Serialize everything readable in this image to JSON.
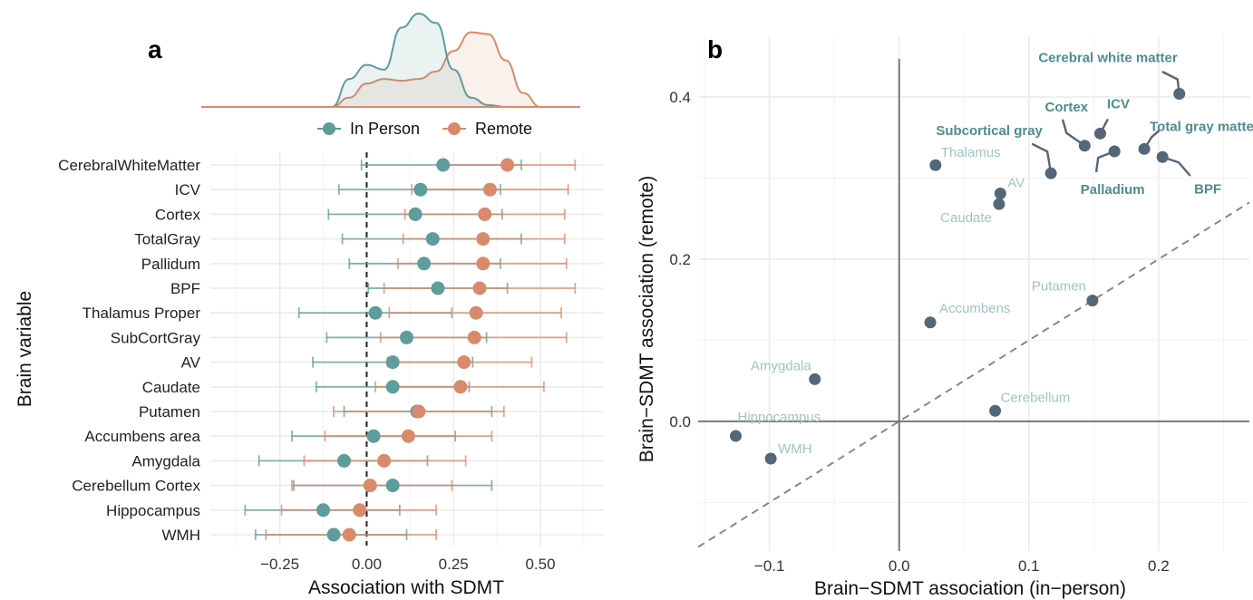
{
  "colors": {
    "in_person": "#5f9c9c",
    "remote": "#d88a6a",
    "point_b": "#556678",
    "label_light": "#9fc4c4",
    "label_dark": "#4f8c8c",
    "grid": "#ebebeb"
  },
  "chart_data": [
    {
      "panel": "a",
      "type": "dot-interval",
      "xlabel": "Association with SDMT",
      "ylabel": "Brain variable",
      "xlim": [
        -0.45,
        0.68
      ],
      "xticks": [
        -0.25,
        0,
        0.25,
        0.5
      ],
      "xtick_labels": [
        "−0.25",
        "0.00",
        "0.25",
        "0.50"
      ],
      "reference_line_x": 0,
      "legend": {
        "position": "top",
        "entries": [
          "In Person",
          "Remote"
        ]
      },
      "density": {
        "x": [
          -0.1,
          -0.05,
          0.0,
          0.05,
          0.1,
          0.15,
          0.2,
          0.25,
          0.3,
          0.35,
          0.4,
          0.45,
          0.5
        ],
        "in_person": [
          0.0,
          0.3,
          0.45,
          0.4,
          0.85,
          1.0,
          0.9,
          0.4,
          0.1,
          0.02,
          0.0,
          0.0,
          0.0
        ],
        "remote": [
          0.0,
          0.1,
          0.25,
          0.3,
          0.28,
          0.3,
          0.38,
          0.6,
          0.8,
          0.78,
          0.5,
          0.15,
          0.0
        ]
      },
      "categories": [
        "CerebralWhiteMatter",
        "ICV",
        "Cortex",
        "TotalGray",
        "Pallidum",
        "BPF",
        "Thalamus Proper",
        "SubCortGray",
        "AV",
        "Caudate",
        "Putamen",
        "Accumbens area",
        "Amygdala",
        "Cerebellum Cortex",
        "Hippocampus",
        "WMH"
      ],
      "series": [
        {
          "name": "In Person",
          "values": [
            0.22,
            0.155,
            0.14,
            0.19,
            0.165,
            0.205,
            0.025,
            0.115,
            0.075,
            0.075,
            0.145,
            0.02,
            -0.065,
            0.075,
            -0.125,
            -0.095
          ],
          "lower": [
            -0.015,
            -0.08,
            -0.11,
            -0.07,
            -0.05,
            0.005,
            -0.195,
            -0.115,
            -0.155,
            -0.145,
            -0.065,
            -0.215,
            -0.31,
            -0.21,
            -0.35,
            -0.32
          ],
          "upper": [
            0.445,
            0.385,
            0.39,
            0.445,
            0.385,
            0.405,
            0.245,
            0.345,
            0.305,
            0.295,
            0.36,
            0.255,
            0.175,
            0.36,
            0.095,
            0.115
          ]
        },
        {
          "name": "Remote",
          "values": [
            0.405,
            0.355,
            0.34,
            0.335,
            0.335,
            0.325,
            0.315,
            0.31,
            0.28,
            0.27,
            0.15,
            0.12,
            0.05,
            0.01,
            -0.02,
            -0.05
          ],
          "lower": [
            0.21,
            0.13,
            0.11,
            0.105,
            0.09,
            0.05,
            0.065,
            0.04,
            0.06,
            0.025,
            -0.095,
            -0.12,
            -0.18,
            -0.215,
            -0.245,
            -0.29
          ],
          "upper": [
            0.6,
            0.58,
            0.57,
            0.57,
            0.575,
            0.6,
            0.56,
            0.575,
            0.475,
            0.51,
            0.395,
            0.36,
            0.285,
            0.245,
            0.2,
            0.2
          ]
        }
      ]
    },
    {
      "panel": "b",
      "type": "scatter",
      "xlabel": "Brain−SDMT association (in−person)",
      "ylabel": "Brain−SDMT association (remote)",
      "xlim": [
        -0.155,
        0.27
      ],
      "ylim": [
        -0.16,
        0.475
      ],
      "xticks": [
        -0.1,
        0,
        0.1,
        0.2
      ],
      "xtick_labels": [
        "−0.1",
        "0.0",
        "0.1",
        "0.2"
      ],
      "yticks": [
        0,
        0.2,
        0.4
      ],
      "ytick_labels": [
        "0.0",
        "0.2",
        "0.4"
      ],
      "reference": "y = x dashed",
      "points": [
        {
          "label": "Cerebral white matter",
          "x": 0.216,
          "y": 0.404,
          "bold": true
        },
        {
          "label": "ICV",
          "x": 0.155,
          "y": 0.355,
          "bold": true
        },
        {
          "label": "Cortex",
          "x": 0.143,
          "y": 0.34,
          "bold": true
        },
        {
          "label": "Total gray matter",
          "x": 0.189,
          "y": 0.336,
          "bold": true
        },
        {
          "label": "Palladium",
          "x": 0.166,
          "y": 0.333,
          "bold": true
        },
        {
          "label": "BPF",
          "x": 0.203,
          "y": 0.326,
          "bold": true
        },
        {
          "label": "Subcortical gray",
          "x": 0.117,
          "y": 0.306,
          "bold": true
        },
        {
          "label": "Thalamus",
          "x": 0.028,
          "y": 0.316,
          "bold": false
        },
        {
          "label": "AV",
          "x": 0.078,
          "y": 0.281,
          "bold": false
        },
        {
          "label": "Caudate",
          "x": 0.077,
          "y": 0.268,
          "bold": false
        },
        {
          "label": "Putamen",
          "x": 0.149,
          "y": 0.149,
          "bold": false
        },
        {
          "label": "Accumbens",
          "x": 0.024,
          "y": 0.122,
          "bold": false
        },
        {
          "label": "Amygdala",
          "x": -0.065,
          "y": 0.052,
          "bold": false
        },
        {
          "label": "Cerebellum",
          "x": 0.074,
          "y": 0.013,
          "bold": false
        },
        {
          "label": "Hippocampus",
          "x": -0.126,
          "y": -0.018,
          "bold": false
        },
        {
          "label": "WMH",
          "x": -0.099,
          "y": -0.046,
          "bold": false
        }
      ]
    }
  ],
  "panel_a_letter": "a",
  "panel_b_letter": "b"
}
